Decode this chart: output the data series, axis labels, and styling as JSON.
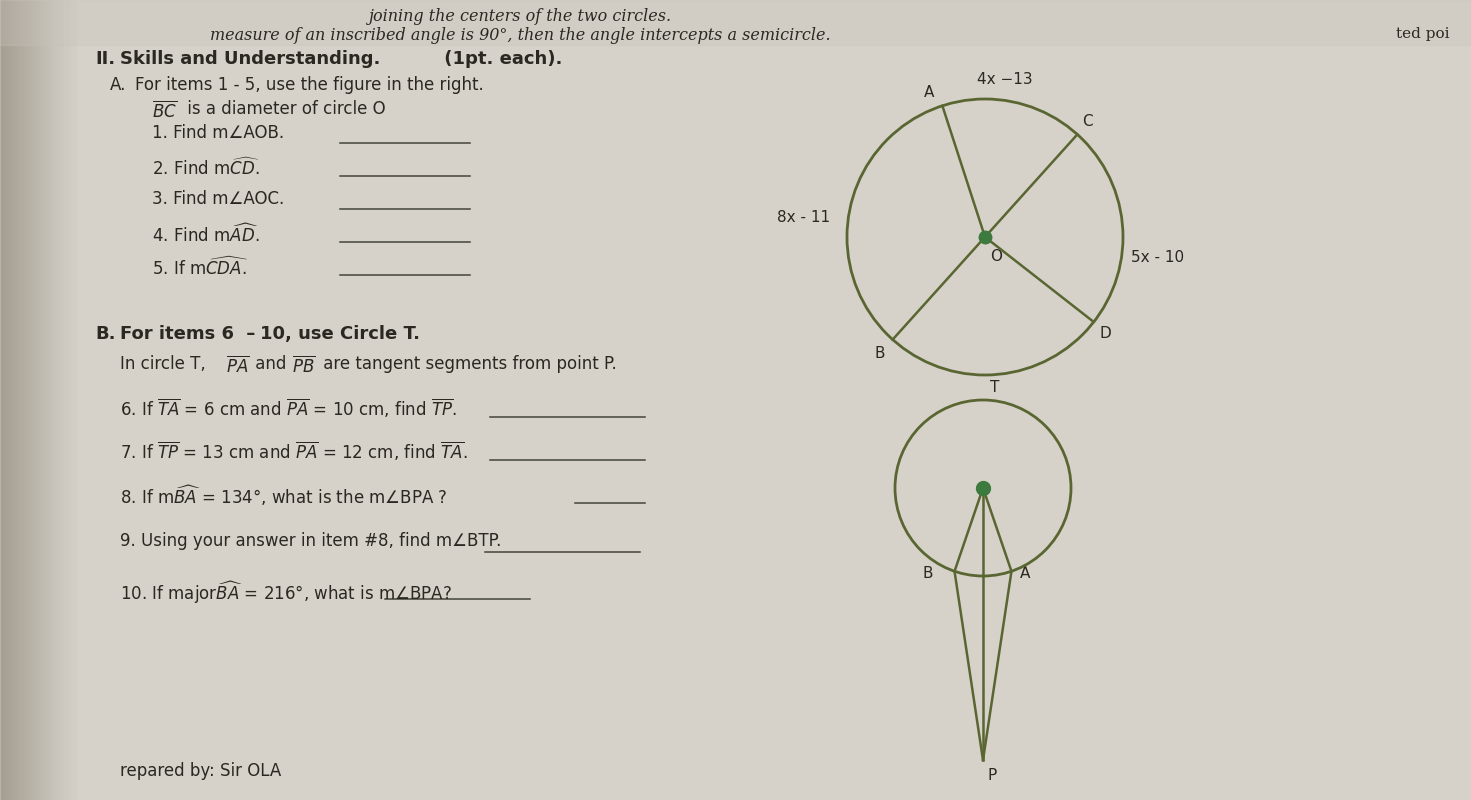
{
  "bg_color": "#d4d0c8",
  "paper_color": "#d4d0c8",
  "header_text1": "joining the centers of the two circles.",
  "header_text2": "measure of an inscribed angle is 90°, then the angle intercepts a semicircle.",
  "header_text3": "ted poi",
  "section_title": "II.  Skills and Understanding. (1pt. each).",
  "section_A": "A.   For items 1 - 5, use the figure in the right.",
  "items_A": [
    "1. Find m∠AOB.",
    "2. Find mĈD.",
    "3. Find m∠AOC.",
    "4. Find mÂD.",
    "5. If mĈDA."
  ],
  "section_B_header": "B. For items 6 – 10, use Circle T.",
  "footer": "repared by: Sir OLA",
  "circle1_color": "#5a6632",
  "circle2_color": "#5a6632",
  "dot_color": "#3d7a3d"
}
